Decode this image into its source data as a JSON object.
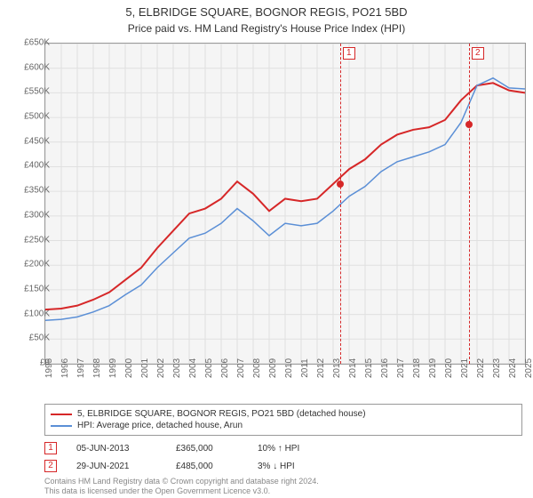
{
  "title": "5, ELBRIDGE SQUARE, BOGNOR REGIS, PO21 5BD",
  "subtitle": "Price paid vs. HM Land Registry's House Price Index (HPI)",
  "chart": {
    "type": "line",
    "background_color": "#f5f5f5",
    "grid_color": "#e0e0e0",
    "border_color": "#999999",
    "ylim": [
      0,
      650000
    ],
    "ytick_step": 50000,
    "yticks": [
      "£0",
      "£50K",
      "£100K",
      "£150K",
      "£200K",
      "£250K",
      "£300K",
      "£350K",
      "£400K",
      "£450K",
      "£500K",
      "£550K",
      "£600K",
      "£650K"
    ],
    "xlim": [
      1995,
      2025
    ],
    "xticks": [
      1995,
      1996,
      1997,
      1998,
      1999,
      2000,
      2001,
      2002,
      2003,
      2004,
      2005,
      2006,
      2007,
      2008,
      2009,
      2010,
      2011,
      2012,
      2013,
      2014,
      2015,
      2016,
      2017,
      2018,
      2019,
      2020,
      2021,
      2022,
      2023,
      2024,
      2025
    ],
    "series": [
      {
        "name": "property_price",
        "color": "#d62728",
        "line_width": 2,
        "points": [
          [
            1995,
            110000
          ],
          [
            1996,
            112000
          ],
          [
            1997,
            118000
          ],
          [
            1998,
            130000
          ],
          [
            1999,
            145000
          ],
          [
            2000,
            170000
          ],
          [
            2001,
            195000
          ],
          [
            2002,
            235000
          ],
          [
            2003,
            270000
          ],
          [
            2004,
            305000
          ],
          [
            2005,
            315000
          ],
          [
            2006,
            335000
          ],
          [
            2007,
            370000
          ],
          [
            2008,
            345000
          ],
          [
            2009,
            310000
          ],
          [
            2010,
            335000
          ],
          [
            2011,
            330000
          ],
          [
            2012,
            335000
          ],
          [
            2013,
            365000
          ],
          [
            2014,
            395000
          ],
          [
            2015,
            415000
          ],
          [
            2016,
            445000
          ],
          [
            2017,
            465000
          ],
          [
            2018,
            475000
          ],
          [
            2019,
            480000
          ],
          [
            2020,
            495000
          ],
          [
            2021,
            535000
          ],
          [
            2022,
            565000
          ],
          [
            2023,
            570000
          ],
          [
            2024,
            555000
          ],
          [
            2025,
            550000
          ]
        ]
      },
      {
        "name": "hpi_arun",
        "color": "#5b8fd6",
        "line_width": 1.5,
        "points": [
          [
            1995,
            88000
          ],
          [
            1996,
            90000
          ],
          [
            1997,
            95000
          ],
          [
            1998,
            105000
          ],
          [
            1999,
            118000
          ],
          [
            2000,
            140000
          ],
          [
            2001,
            160000
          ],
          [
            2002,
            195000
          ],
          [
            2003,
            225000
          ],
          [
            2004,
            255000
          ],
          [
            2005,
            265000
          ],
          [
            2006,
            285000
          ],
          [
            2007,
            315000
          ],
          [
            2008,
            290000
          ],
          [
            2009,
            260000
          ],
          [
            2010,
            285000
          ],
          [
            2011,
            280000
          ],
          [
            2012,
            285000
          ],
          [
            2013,
            310000
          ],
          [
            2014,
            340000
          ],
          [
            2015,
            360000
          ],
          [
            2016,
            390000
          ],
          [
            2017,
            410000
          ],
          [
            2018,
            420000
          ],
          [
            2019,
            430000
          ],
          [
            2020,
            445000
          ],
          [
            2021,
            490000
          ],
          [
            2022,
            565000
          ],
          [
            2023,
            580000
          ],
          [
            2024,
            560000
          ],
          [
            2025,
            558000
          ]
        ]
      }
    ],
    "markers": [
      {
        "id": "1",
        "x": 2013.43,
        "price": 365000
      },
      {
        "id": "2",
        "x": 2021.49,
        "price": 485000
      }
    ]
  },
  "legend": {
    "items": [
      {
        "color": "#d62728",
        "label": "5, ELBRIDGE SQUARE, BOGNOR REGIS, PO21 5BD (detached house)"
      },
      {
        "color": "#5b8fd6",
        "label": "HPI: Average price, detached house, Arun"
      }
    ]
  },
  "transactions": [
    {
      "id": "1",
      "date": "05-JUN-2013",
      "price": "£365,000",
      "pct": "10% ↑ HPI"
    },
    {
      "id": "2",
      "date": "29-JUN-2021",
      "price": "£485,000",
      "pct": "3% ↓ HPI"
    }
  ],
  "attribution": {
    "line1": "Contains HM Land Registry data © Crown copyright and database right 2024.",
    "line2": "This data is licensed under the Open Government Licence v3.0."
  }
}
